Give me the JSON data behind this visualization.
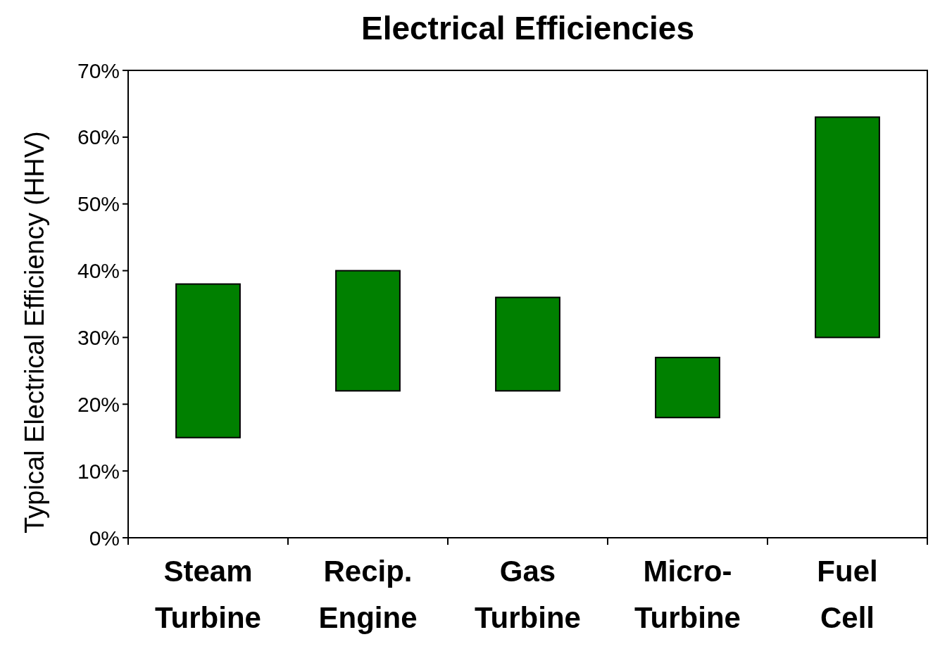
{
  "chart_data": {
    "type": "bar",
    "title": "Electrical Efficiencies",
    "ylabel": "Typical Electrical Efficiency (HHV)",
    "categories": [
      "Steam Turbine",
      "Recip. Engine",
      "Gas Turbine",
      "Micro-Turbine",
      "Fuel Cell"
    ],
    "values": [
      23,
      18,
      14,
      9,
      33
    ],
    "base": [
      15,
      22,
      22,
      18,
      30
    ],
    "color": "#008000",
    "ylim": [
      0,
      70
    ],
    "yticks": [
      {
        "value": 0,
        "label": "0%"
      },
      {
        "value": 10,
        "label": "10%"
      },
      {
        "value": 20,
        "label": "20%"
      },
      {
        "value": 30,
        "label": "30%"
      },
      {
        "value": 40,
        "label": "40%"
      },
      {
        "value": 50,
        "label": "50%"
      },
      {
        "value": 60,
        "label": "60%"
      },
      {
        "value": 70,
        "label": "70%"
      }
    ],
    "grid": false
  }
}
